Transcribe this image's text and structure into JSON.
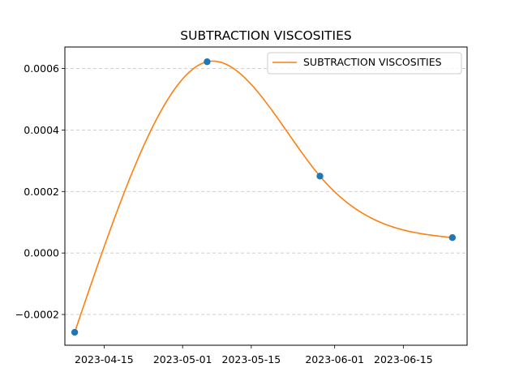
{
  "chart_data": {
    "type": "line",
    "title": "SUBTRACTION VISCOSITIES",
    "xlabel": "",
    "ylabel": "",
    "x_axis_type": "date",
    "xlim": [
      "2023-04-07",
      "2023-06-28"
    ],
    "ylim": [
      -0.0003,
      0.00067
    ],
    "x_ticks": [
      "2023-04-15",
      "2023-05-01",
      "2023-05-15",
      "2023-06-01",
      "2023-06-15"
    ],
    "y_ticks": [
      -0.0002,
      0.0,
      0.0002,
      0.0004,
      0.0006
    ],
    "y_tick_labels": [
      "−0.0002",
      "0.0000",
      "0.0002",
      "0.0004",
      "0.0006"
    ],
    "grid": {
      "y": true,
      "x": false,
      "style": "dashed"
    },
    "legend": {
      "position": "top-right",
      "entries": [
        "SUBTRACTION VISCOSITIES"
      ]
    },
    "series": [
      {
        "name": "SUBTRACTION VISCOSITIES",
        "line_color": "#ff7f0e",
        "marker_color": "#1f77b4",
        "points": [
          {
            "x": "2023-04-09",
            "y": -0.000258
          },
          {
            "x": "2023-05-06",
            "y": 0.000622
          },
          {
            "x": "2023-05-29",
            "y": 0.00025
          },
          {
            "x": "2023-06-25",
            "y": 5e-05
          }
        ]
      }
    ]
  }
}
